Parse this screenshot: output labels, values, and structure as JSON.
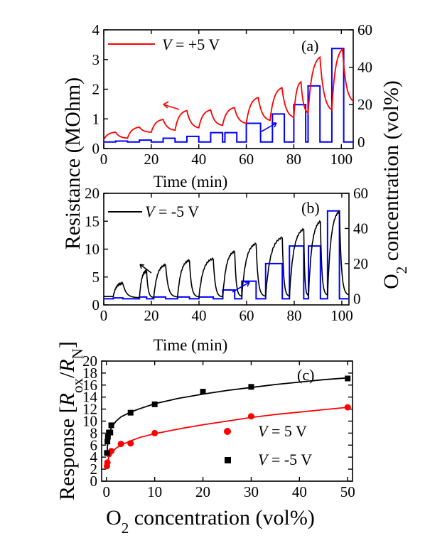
{
  "figure": {
    "shared_left_label": "Resistance (MOhm)",
    "shared_right_label": "O2 concentration (vol%)"
  },
  "chart_data": [
    {
      "id": "a",
      "type": "line",
      "panel_label": "(a)",
      "xlabel": "Time (min)",
      "xlim": [
        0,
        105
      ],
      "xticks": [
        0,
        20,
        40,
        60,
        80,
        100
      ],
      "ylim": [
        0,
        4
      ],
      "yticks": [
        0,
        1,
        2,
        3,
        4
      ],
      "y2lim": [
        -3.5,
        60
      ],
      "y2ticks": [
        0,
        20,
        40,
        60
      ],
      "legend": "V = +5 V",
      "colors": {
        "resistance": "#ff0000",
        "o2": "#0000ff"
      },
      "series": [
        {
          "axis": "left",
          "peaks": [
            [
              0,
              0.3,
              0.55
            ],
            [
              10,
              0.35,
              0.72
            ],
            [
              20,
              0.55,
              0.98
            ],
            [
              30,
              0.62,
              1.28
            ],
            [
              40,
              0.7,
              1.3
            ],
            [
              50,
              0.78,
              1.38
            ],
            [
              60,
              0.85,
              1.72
            ],
            [
              70,
              0.95,
              2.05
            ],
            [
              80,
              1.05,
              2.25
            ],
            [
              86,
              1.2,
              3.08
            ],
            [
              96,
              1.3,
              3.35
            ]
          ],
          "end_value": 1.6
        },
        {
          "axis": "right",
          "pulses": [
            [
              5,
              10,
              0.5
            ],
            [
              15,
              20,
              1
            ],
            [
              25,
              30,
              2
            ],
            [
              35,
              40,
              3
            ],
            [
              45,
              50,
              5
            ],
            [
              51,
              56,
              5
            ],
            [
              60,
              66,
              10
            ],
            [
              71,
              76,
              15
            ],
            [
              80,
              85,
              20
            ],
            [
              86,
              91,
              30
            ],
            [
              96,
              101,
              50
            ]
          ],
          "baseline": 0
        }
      ]
    },
    {
      "id": "b",
      "type": "line",
      "panel_label": "(b)",
      "xlabel": "Time (min)",
      "xlim": [
        0,
        103
      ],
      "xticks": [
        0,
        20,
        40,
        60,
        80,
        100
      ],
      "ylim": [
        0,
        20
      ],
      "yticks": [
        0,
        5,
        10,
        15,
        20
      ],
      "y2lim": [
        -3.5,
        60
      ],
      "y2ticks": [
        0,
        20,
        40,
        60
      ],
      "legend": "V = -5 V",
      "colors": {
        "resistance": "#000000",
        "o2": "#0000ff"
      },
      "series": [
        {
          "axis": "left",
          "pulses": [
            [
              4,
              8,
              3.9,
              1.5
            ],
            [
              15,
              18,
              6.1,
              1.3
            ],
            [
              21,
              26,
              7.2,
              1.3
            ],
            [
              31,
              36,
              8.0,
              1.4
            ],
            [
              40,
              46,
              8.3,
              1.4
            ],
            [
              50,
              55,
              9.6,
              1.4
            ],
            [
              58,
              64,
              11.0,
              1.5
            ],
            [
              68,
              75,
              12.1,
              1.5
            ],
            [
              78,
              84,
              13.6,
              1.5
            ],
            [
              86,
              91,
              15.0,
              1.6
            ],
            [
              94,
              99,
              16.8,
              1.7
            ]
          ],
          "start_value": 1.5
        },
        {
          "axis": "right",
          "pulses": [
            [
              4,
              8,
              0.5
            ],
            [
              15,
              18,
              1
            ],
            [
              21,
              26,
              1
            ],
            [
              31,
              36,
              1
            ],
            [
              40,
              46,
              1
            ],
            [
              50,
              55,
              5
            ],
            [
              58,
              64,
              10
            ],
            [
              68,
              75,
              20
            ],
            [
              78,
              84,
              30
            ],
            [
              86,
              91,
              30
            ],
            [
              94,
              99,
              50
            ]
          ],
          "baseline": 0
        }
      ]
    },
    {
      "id": "c",
      "type": "scatter",
      "panel_label": "(c)",
      "xlabel": "O2 concentration (vol%)",
      "ylabel": "Response [Rox/RN]",
      "xlim": [
        -1,
        51
      ],
      "xticks": [
        0,
        10,
        20,
        30,
        40,
        50
      ],
      "ylim": [
        0,
        20
      ],
      "yticks": [
        0,
        2,
        4,
        6,
        8,
        10,
        12,
        14,
        16,
        18,
        20
      ],
      "series": [
        {
          "name": "V = 5 V",
          "color": "#ff0000",
          "marker": "circle",
          "x": [
            0.1,
            0.2,
            0.3,
            0.5,
            1,
            3,
            5,
            10,
            30,
            50
          ],
          "y": [
            2.5,
            3.1,
            4.7,
            4.5,
            5.0,
            6.2,
            6.3,
            8.0,
            10.8,
            12.3
          ],
          "fit": [
            [
              0.1,
              2.2
            ],
            [
              0.5,
              4.1
            ],
            [
              1,
              4.7
            ],
            [
              2,
              5.5
            ],
            [
              3,
              6.0
            ],
            [
              5,
              6.7
            ],
            [
              7,
              7.3
            ],
            [
              10,
              7.9
            ],
            [
              15,
              8.7
            ],
            [
              20,
              9.4
            ],
            [
              25,
              10.0
            ],
            [
              30,
              10.6
            ],
            [
              35,
              11.1
            ],
            [
              40,
              11.5
            ],
            [
              45,
              11.9
            ],
            [
              50,
              12.3
            ]
          ]
        },
        {
          "name": "V = -5 V",
          "color": "#000000",
          "marker": "square",
          "x": [
            0.1,
            0.2,
            0.3,
            0.5,
            0.8,
            1,
            5,
            10,
            20,
            30,
            50
          ],
          "y": [
            4.7,
            6.6,
            7.4,
            8.1,
            8.1,
            9.3,
            11.4,
            12.8,
            14.9,
            15.7,
            17.1
          ],
          "fit": [
            [
              0.1,
              4.5
            ],
            [
              0.3,
              6.8
            ],
            [
              0.5,
              7.7
            ],
            [
              1,
              8.9
            ],
            [
              2,
              10.0
            ],
            [
              3,
              10.7
            ],
            [
              5,
              11.5
            ],
            [
              7,
              12.1
            ],
            [
              10,
              12.9
            ],
            [
              15,
              13.8
            ],
            [
              20,
              14.5
            ],
            [
              25,
              15.1
            ],
            [
              30,
              15.6
            ],
            [
              35,
              16.1
            ],
            [
              40,
              16.5
            ],
            [
              45,
              16.9
            ],
            [
              50,
              17.2
            ]
          ]
        }
      ]
    }
  ]
}
